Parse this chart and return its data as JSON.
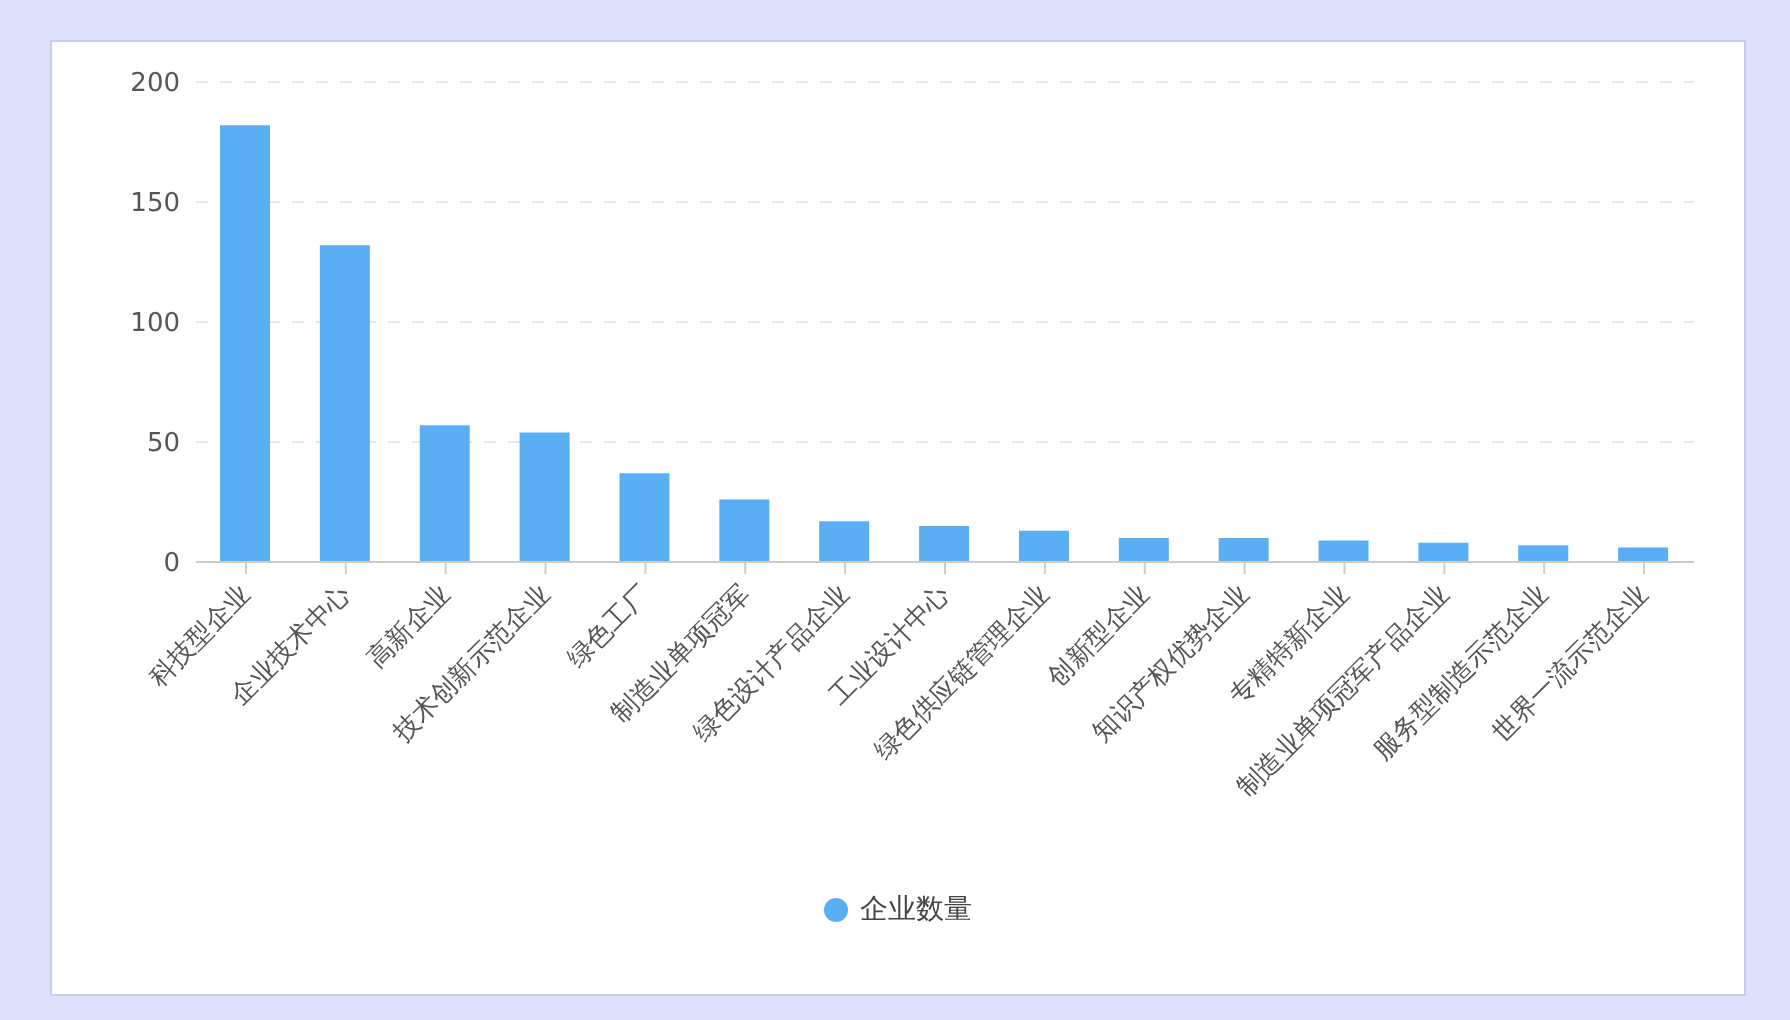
{
  "chart_data": {
    "type": "bar",
    "categories": [
      "科技型企业",
      "企业技术中心",
      "高新企业",
      "技术创新示范企业",
      "绿色工厂",
      "制造业单项冠军",
      "绿色设计产品企业",
      "工业设计中心",
      "绿色供应链管理企业",
      "创新型企业",
      "知识产权优势企业",
      "专精特新企业",
      "制造业单项冠军产品企业",
      "服务型制造示范企业",
      "世界一流示范企业"
    ],
    "series": [
      {
        "name": "企业数量",
        "color": "#5aaef3",
        "values": [
          182,
          132,
          57,
          54,
          37,
          26,
          17,
          15,
          13,
          10,
          10,
          9,
          8,
          7,
          6
        ]
      }
    ],
    "ylim": [
      0,
      200
    ],
    "yticks": [
      0,
      50,
      100,
      150,
      200
    ],
    "grid": "y",
    "legend": "bottom"
  }
}
